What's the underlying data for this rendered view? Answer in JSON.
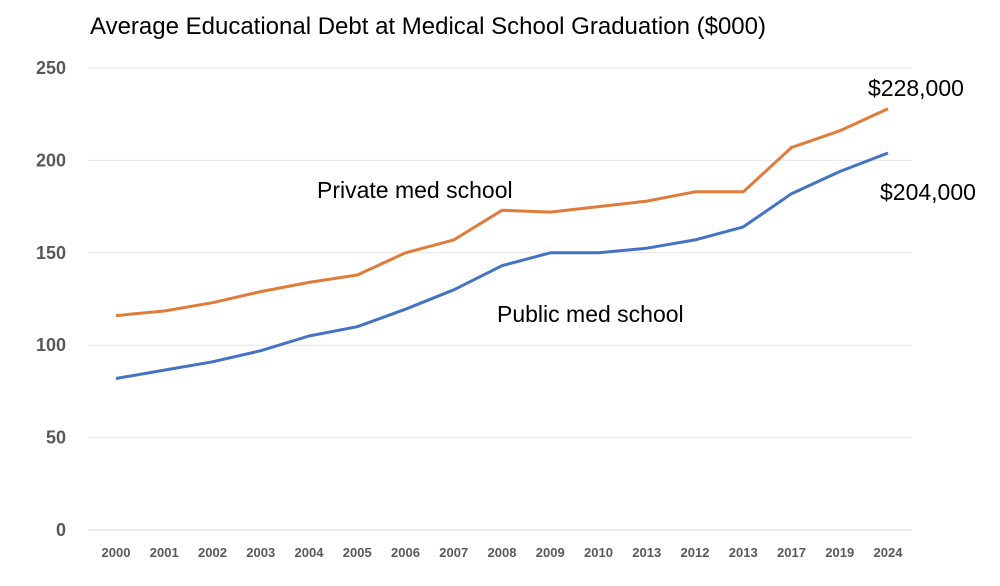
{
  "chart_data": {
    "type": "line",
    "title": "Average Educational Debt at Medical School Graduation ($000)",
    "xlabel": "",
    "ylabel": "",
    "ylim": [
      0,
      250
    ],
    "yticks": [
      0,
      50,
      100,
      150,
      200,
      250
    ],
    "grid": true,
    "categories": [
      "2000",
      "2001",
      "2002",
      "2003",
      "2004",
      "2005",
      "2006",
      "2007",
      "2008",
      "2009",
      "2010",
      "2013",
      "2012",
      "2013",
      "2017",
      "2019",
      "2024"
    ],
    "series": [
      {
        "name": "Private med school",
        "color": "#E07B39",
        "values": [
          116,
          118.5,
          123,
          129,
          134,
          138,
          150,
          157,
          173,
          172,
          175,
          178,
          183,
          183,
          207,
          216,
          228
        ]
      },
      {
        "name": "Public med school",
        "color": "#4472C4",
        "values": [
          82,
          86.5,
          91,
          97,
          105,
          110,
          119.5,
          130,
          143,
          150,
          150,
          152.5,
          157,
          164,
          182,
          194,
          204
        ]
      }
    ],
    "annotations": {
      "private_label": "Private med school",
      "public_label": "Public med school",
      "private_end": "$228,000",
      "public_end": "$204,000"
    }
  }
}
